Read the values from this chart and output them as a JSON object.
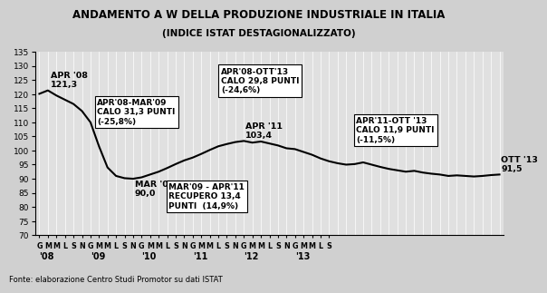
{
  "title": "ANDAMENTO A W DELLA PRODUZIONE INDUSTRIALE IN ITALIA",
  "subtitle": "(INDICE ISTAT DESTAGIONALIZZATO)",
  "footnote": "Fonte: elaborazione Centro Studi Promotor su dati ISTAT",
  "background_color": "#d0d0d0",
  "plot_bg_color": "#e0e0e0",
  "ylim": [
    70,
    135
  ],
  "yticks": [
    70,
    75,
    80,
    85,
    90,
    95,
    100,
    105,
    110,
    115,
    120,
    125,
    130,
    135
  ],
  "months_labels": [
    "G",
    "M",
    "M",
    "L",
    "S",
    "N",
    "G",
    "M",
    "M",
    "L",
    "S",
    "N",
    "G",
    "M",
    "M",
    "L",
    "S",
    "N",
    "G",
    "M",
    "M",
    "L",
    "S",
    "N",
    "G",
    "M",
    "M",
    "L",
    "S",
    "N",
    "G",
    "M",
    "M",
    "L",
    "S"
  ],
  "year_labels": [
    "'08",
    "'09",
    "'10",
    "'11",
    "'12",
    "'13"
  ],
  "year_positions": [
    0,
    6,
    12,
    18,
    24,
    30
  ],
  "values": [
    120.1,
    121.3,
    119.5,
    118.0,
    116.5,
    114.0,
    110.0,
    101.5,
    94.0,
    91.0,
    90.2,
    90.0,
    90.5,
    91.5,
    92.5,
    93.8,
    95.2,
    96.5,
    97.5,
    98.8,
    100.2,
    101.5,
    102.3,
    103.0,
    103.4,
    102.8,
    103.2,
    102.5,
    101.8,
    100.8,
    100.5,
    99.5,
    98.5,
    97.2,
    96.2,
    95.5,
    95.0,
    95.2,
    95.8,
    95.0,
    94.2,
    93.5,
    93.0,
    92.5,
    92.8,
    92.2,
    91.8,
    91.5,
    91.0,
    91.2,
    91.0,
    90.8,
    91.0,
    91.3,
    91.5
  ],
  "annot_nobox": [
    {
      "label": "APR '08\n121,3",
      "xi": 1,
      "yi": 121.3,
      "ha": "left",
      "va": "bottom",
      "ox": 0.3,
      "oy": 0.5
    },
    {
      "label": "MAR '09\n90,0",
      "xi": 11,
      "yi": 90.0,
      "ha": "left",
      "va": "top",
      "ox": 0.2,
      "oy": -0.5
    },
    {
      "label": "APR '11\n103,4",
      "xi": 24,
      "yi": 103.4,
      "ha": "left",
      "va": "bottom",
      "ox": 0.2,
      "oy": 0.5
    },
    {
      "label": "OTT '13\n91,5",
      "xi": 54,
      "yi": 91.5,
      "ha": "left",
      "va": "bottom",
      "ox": 0.2,
      "oy": 0.5
    }
  ],
  "annot_box": [
    {
      "label": "APR'08-MAR'09\nCALO 31,3 PUNTI\n(-25,8%)",
      "xi": 6.8,
      "yi": 118.5
    },
    {
      "label": "MAR'09 - APR'11\nRECUPERO 13,4\nPUNTI  (14,9%)",
      "xi": 15.2,
      "yi": 88.5
    },
    {
      "label": "APR'08-OTT'13\nCALO 29,8 PUNTI\n(-24,6%)",
      "xi": 21.3,
      "yi": 129.5
    },
    {
      "label": "APR'11-OTT '13\nCALO 11,9 PUNTI\n(-11,5%)",
      "xi": 37.2,
      "yi": 112.0
    }
  ]
}
